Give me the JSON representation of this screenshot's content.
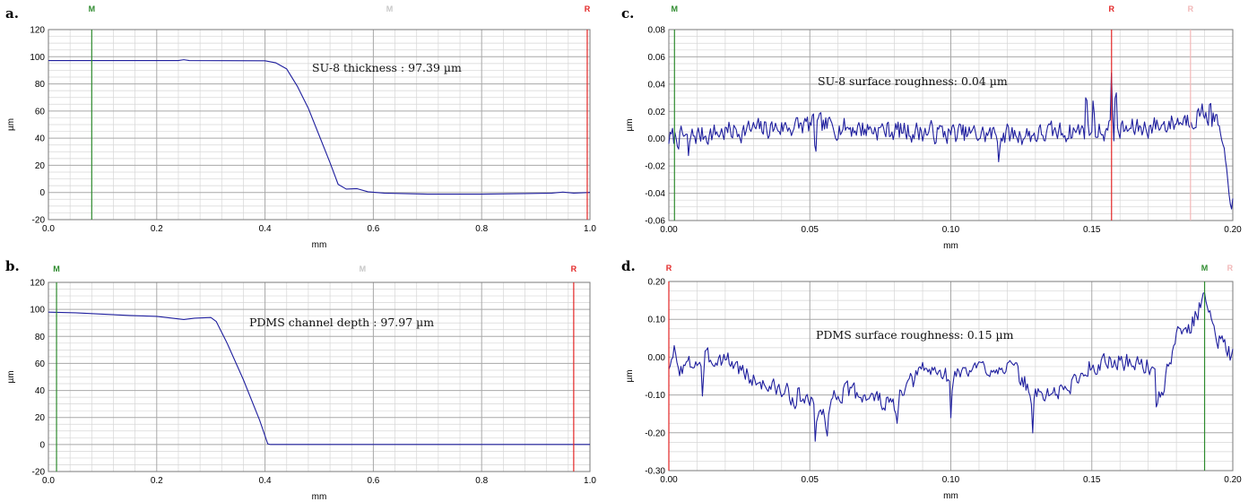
{
  "colors": {
    "trace": "#1f1f9e",
    "grid_major": "#a8a8a8",
    "grid_minor": "#d6d6d6",
    "cursor_m": "#2e8b2e",
    "cursor_r": "#e32626",
    "cursor_faded": "#f2b7b7",
    "label_faded": "#c8c8c8"
  },
  "chart_data": [
    {
      "id": "a",
      "panel_label": "a.",
      "type": "line",
      "xlabel": "mm",
      "ylabel": "µm",
      "xlim": [
        0,
        1.0
      ],
      "ylim": [
        -20,
        120
      ],
      "xticks": [
        0.0,
        0.2,
        0.4,
        0.6,
        0.8,
        1.0
      ],
      "xtick_labels": [
        "0.0",
        "0.2",
        "0.4",
        "0.6",
        "0.8",
        "1.0"
      ],
      "yticks": [
        -20,
        0,
        20,
        40,
        60,
        80,
        100,
        120
      ],
      "ytick_labels": [
        "-20",
        "0",
        "20",
        "40",
        "60",
        "80",
        "100",
        "120"
      ],
      "annotation": "SU-8 thickness : 97.39 µm",
      "cursors": [
        {
          "label": "M",
          "x": 0.08,
          "role": "M",
          "line": true
        },
        {
          "label": "M",
          "x": 0.63,
          "role": "faded",
          "line": false
        },
        {
          "label": "R",
          "x": 0.995,
          "role": "R",
          "line": true
        }
      ],
      "series": [
        {
          "generator": "step",
          "x": [
            0.0,
            0.24,
            0.25,
            0.26,
            0.4,
            0.42,
            0.44,
            0.46,
            0.48,
            0.5,
            0.52,
            0.535,
            0.55,
            0.57,
            0.59,
            0.62,
            0.7,
            0.8,
            0.88,
            0.93,
            0.95,
            0.97,
            1.0
          ],
          "y": [
            97.2,
            97.2,
            97.8,
            97.2,
            97.0,
            95.5,
            91,
            78,
            62,
            42,
            22,
            6,
            2.5,
            2.8,
            0.5,
            -0.5,
            -1.2,
            -1.2,
            -0.8,
            -0.5,
            0.3,
            -0.5,
            0.0
          ]
        }
      ]
    },
    {
      "id": "b",
      "panel_label": "b.",
      "type": "line",
      "xlabel": "mm",
      "ylabel": "µm",
      "xlim": [
        0,
        1.0
      ],
      "ylim": [
        -20,
        120
      ],
      "xticks": [
        0.0,
        0.2,
        0.4,
        0.6,
        0.8,
        1.0
      ],
      "xtick_labels": [
        "0.0",
        "0.2",
        "0.4",
        "0.6",
        "0.8",
        "1.0"
      ],
      "yticks": [
        -20,
        0,
        20,
        40,
        60,
        80,
        100,
        120
      ],
      "ytick_labels": [
        "-20",
        "0",
        "20",
        "40",
        "60",
        "80",
        "100",
        "120"
      ],
      "annotation": "PDMS channel depth : 97.97 µm",
      "cursors": [
        {
          "label": "M",
          "x": 0.015,
          "role": "M",
          "line": true
        },
        {
          "label": "M",
          "x": 0.58,
          "role": "faded",
          "line": false
        },
        {
          "label": "R",
          "x": 0.97,
          "role": "R",
          "line": true
        }
      ],
      "series": [
        {
          "generator": "step",
          "x": [
            0.0,
            0.05,
            0.1,
            0.15,
            0.2,
            0.25,
            0.27,
            0.3,
            0.31,
            0.33,
            0.36,
            0.39,
            0.405,
            0.41,
            0.5,
            0.6,
            0.7,
            0.8,
            0.9,
            1.0
          ],
          "y": [
            98,
            97.5,
            96.5,
            95.5,
            94.8,
            92.5,
            93.5,
            94.0,
            91,
            75,
            48,
            18,
            0.5,
            0,
            0,
            0,
            0,
            0,
            0,
            0
          ]
        }
      ]
    },
    {
      "id": "c",
      "panel_label": "c.",
      "type": "line",
      "xlabel": "mm",
      "ylabel": "µm",
      "xlim": [
        0,
        0.2
      ],
      "ylim": [
        -0.06,
        0.08
      ],
      "xticks": [
        0.0,
        0.05,
        0.1,
        0.15,
        0.2
      ],
      "xtick_labels": [
        "0.00",
        "0.05",
        "0.10",
        "0.15",
        "0.20"
      ],
      "yticks": [
        -0.06,
        -0.04,
        -0.02,
        0.0,
        0.02,
        0.04,
        0.06,
        0.08
      ],
      "ytick_labels": [
        "-0.06",
        "-0.04",
        "-0.02",
        "0.00",
        "0.02",
        "0.04",
        "0.06",
        "0.08"
      ],
      "annotation": "SU-8 surface roughness: 0.04 µm",
      "cursors": [
        {
          "label": "M",
          "x": 0.002,
          "role": "M",
          "line": true
        },
        {
          "label": "R",
          "x": 0.157,
          "role": "R",
          "line": true
        },
        {
          "label": "R",
          "x": 0.185,
          "role": "faded",
          "line": true
        }
      ],
      "series": [
        {
          "generator": "noise",
          "seed": 7,
          "n": 460,
          "amplitude": 0.011,
          "base_x": [
            0.0,
            0.02,
            0.05,
            0.08,
            0.11,
            0.13,
            0.145,
            0.16,
            0.175,
            0.185,
            0.19,
            0.195,
            0.198,
            0.2
          ],
          "base_y": [
            0.0,
            0.005,
            0.01,
            0.006,
            0.003,
            0.003,
            0.006,
            0.006,
            0.01,
            0.015,
            0.02,
            0.01,
            -0.03,
            -0.047
          ],
          "spikes": [
            [
              0.148,
              0.044
            ],
            [
              0.1505,
              0.03
            ],
            [
              0.157,
              0.052
            ],
            [
              0.1585,
              0.045
            ],
            [
              0.117,
              -0.018
            ],
            [
              0.007,
              -0.014
            ],
            [
              0.052,
              -0.016
            ],
            [
              0.192,
              0.029
            ]
          ]
        }
      ]
    },
    {
      "id": "d",
      "panel_label": "d.",
      "type": "line",
      "xlabel": "mm",
      "ylabel": "µm",
      "xlim": [
        0,
        0.2
      ],
      "ylim": [
        -0.3,
        0.2
      ],
      "xticks": [
        0.0,
        0.05,
        0.1,
        0.15,
        0.2
      ],
      "xtick_labels": [
        "0.00",
        "0.05",
        "0.10",
        "0.15",
        "0.20"
      ],
      "yticks": [
        -0.3,
        -0.2,
        -0.1,
        0.0,
        0.1,
        0.2
      ],
      "ytick_labels": [
        "-0.30",
        "-0.20",
        "-0.10",
        "0.00",
        "0.10",
        "0.20"
      ],
      "annotation": "PDMS surface roughness: 0.15 µm",
      "cursors": [
        {
          "label": "R",
          "x": 0.0,
          "role": "R",
          "line": true
        },
        {
          "label": "M",
          "x": 0.19,
          "role": "M",
          "line": true
        },
        {
          "label": "R",
          "x": 0.199,
          "role": "faded",
          "line": false
        }
      ],
      "series": [
        {
          "generator": "noise",
          "seed": 3,
          "n": 420,
          "amplitude": 0.035,
          "base_x": [
            0.0,
            0.005,
            0.01,
            0.02,
            0.03,
            0.04,
            0.05,
            0.055,
            0.06,
            0.07,
            0.08,
            0.09,
            0.1,
            0.11,
            0.12,
            0.13,
            0.14,
            0.15,
            0.16,
            0.17,
            0.175,
            0.18,
            0.185,
            0.19,
            0.195,
            0.2
          ],
          "base_y": [
            -0.02,
            -0.03,
            -0.01,
            0.0,
            -0.06,
            -0.09,
            -0.12,
            -0.15,
            -0.09,
            -0.1,
            -0.13,
            -0.03,
            -0.05,
            -0.03,
            -0.02,
            -0.1,
            -0.09,
            -0.02,
            -0.01,
            -0.02,
            -0.1,
            0.06,
            0.08,
            0.16,
            0.05,
            0.0
          ],
          "spikes": [
            [
              0.052,
              -0.24
            ],
            [
              0.056,
              -0.24
            ],
            [
              0.129,
              -0.21
            ],
            [
              0.173,
              -0.15
            ],
            [
              0.081,
              -0.18
            ],
            [
              0.045,
              -0.15
            ],
            [
              0.1,
              -0.16
            ],
            [
              0.19,
              0.17
            ],
            [
              0.002,
              0.04
            ],
            [
              0.012,
              -0.12
            ]
          ]
        }
      ]
    }
  ]
}
